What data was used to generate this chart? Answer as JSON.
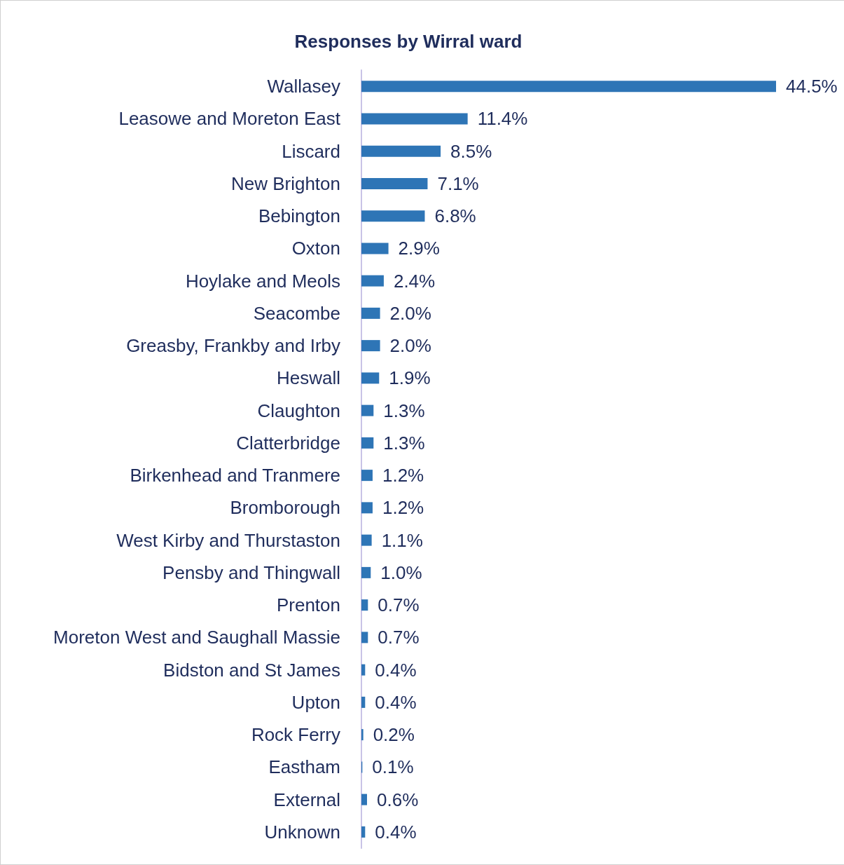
{
  "chart_data": {
    "type": "bar",
    "orientation": "horizontal",
    "title": "Responses by Wirral ward",
    "categories": [
      "Wallasey",
      "Leasowe and Moreton East",
      "Liscard",
      "New Brighton",
      "Bebington",
      "Oxton",
      "Hoylake and Meols",
      "Seacombe",
      "Greasby, Frankby and Irby",
      "Heswall",
      "Claughton",
      "Clatterbridge",
      "Birkenhead and Tranmere",
      "Bromborough",
      "West Kirby and Thurstaston",
      "Pensby and Thingwall",
      "Prenton",
      "Moreton West and Saughall Massie",
      "Bidston and St James",
      "Upton",
      "Rock Ferry",
      "Eastham",
      "External",
      "Unknown"
    ],
    "values": [
      44.5,
      11.4,
      8.5,
      7.1,
      6.8,
      2.9,
      2.4,
      2.0,
      2.0,
      1.9,
      1.3,
      1.3,
      1.2,
      1.2,
      1.1,
      1.0,
      0.7,
      0.7,
      0.4,
      0.4,
      0.2,
      0.1,
      0.6,
      0.4
    ],
    "value_labels": [
      "44.5%",
      "11.4%",
      "8.5%",
      "7.1%",
      "6.8%",
      "2.9%",
      "2.4%",
      "2.0%",
      "2.0%",
      "1.9%",
      "1.3%",
      "1.3%",
      "1.2%",
      "1.2%",
      "1.1%",
      "1.0%",
      "0.7%",
      "0.7%",
      "0.4%",
      "0.4%",
      "0.2%",
      "0.1%",
      "0.6%",
      "0.4%"
    ],
    "color": "#2e75b6"
  }
}
